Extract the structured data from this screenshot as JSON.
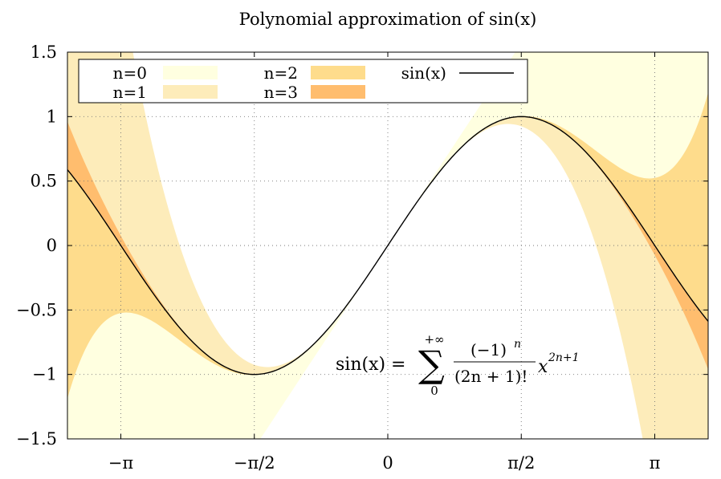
{
  "chart_data": {
    "type": "area",
    "title": "Polynomial approximation of sin(x)",
    "xlabel": "",
    "ylabel": "",
    "xlim": [
      -3.77,
      3.77
    ],
    "ylim": [
      -1.5,
      1.5
    ],
    "x_ticks": [
      {
        "value": -3.14159,
        "label": "−π"
      },
      {
        "value": -1.5708,
        "label": "−π/2"
      },
      {
        "value": 0,
        "label": "0"
      },
      {
        "value": 1.5708,
        "label": "π/2"
      },
      {
        "value": 3.14159,
        "label": "π"
      }
    ],
    "y_ticks": [
      {
        "value": -1.5,
        "label": "−1.5"
      },
      {
        "value": -1,
        "label": "−1"
      },
      {
        "value": -0.5,
        "label": "−0.5"
      },
      {
        "value": 0,
        "label": "0"
      },
      {
        "value": 0.5,
        "label": "0.5"
      },
      {
        "value": 1,
        "label": "1"
      },
      {
        "value": 1.5,
        "label": "1.5"
      }
    ],
    "grid": true,
    "grid_style": "dotted",
    "legend_position": "top-left",
    "series": [
      {
        "name": "n=0",
        "kind": "band",
        "color": "#ffffe0",
        "order": 0
      },
      {
        "name": "n=1",
        "kind": "band",
        "color": "#fdecba",
        "order": 1
      },
      {
        "name": "n=2",
        "kind": "band",
        "color": "#fedc8c",
        "order": 2
      },
      {
        "name": "n=3",
        "kind": "band",
        "color": "#ffbd6e",
        "order": 3
      },
      {
        "name": "sin(x)",
        "kind": "line",
        "color": "#000000"
      }
    ],
    "annotation": {
      "lhs": "sin(x) =",
      "sum_upper": "+∞",
      "sum_lower": "0",
      "numerator": "(−1)",
      "numerator_exp": "n",
      "denominator": "(2n + 1)!",
      "factor": "x",
      "factor_exp": "2n+1"
    }
  }
}
